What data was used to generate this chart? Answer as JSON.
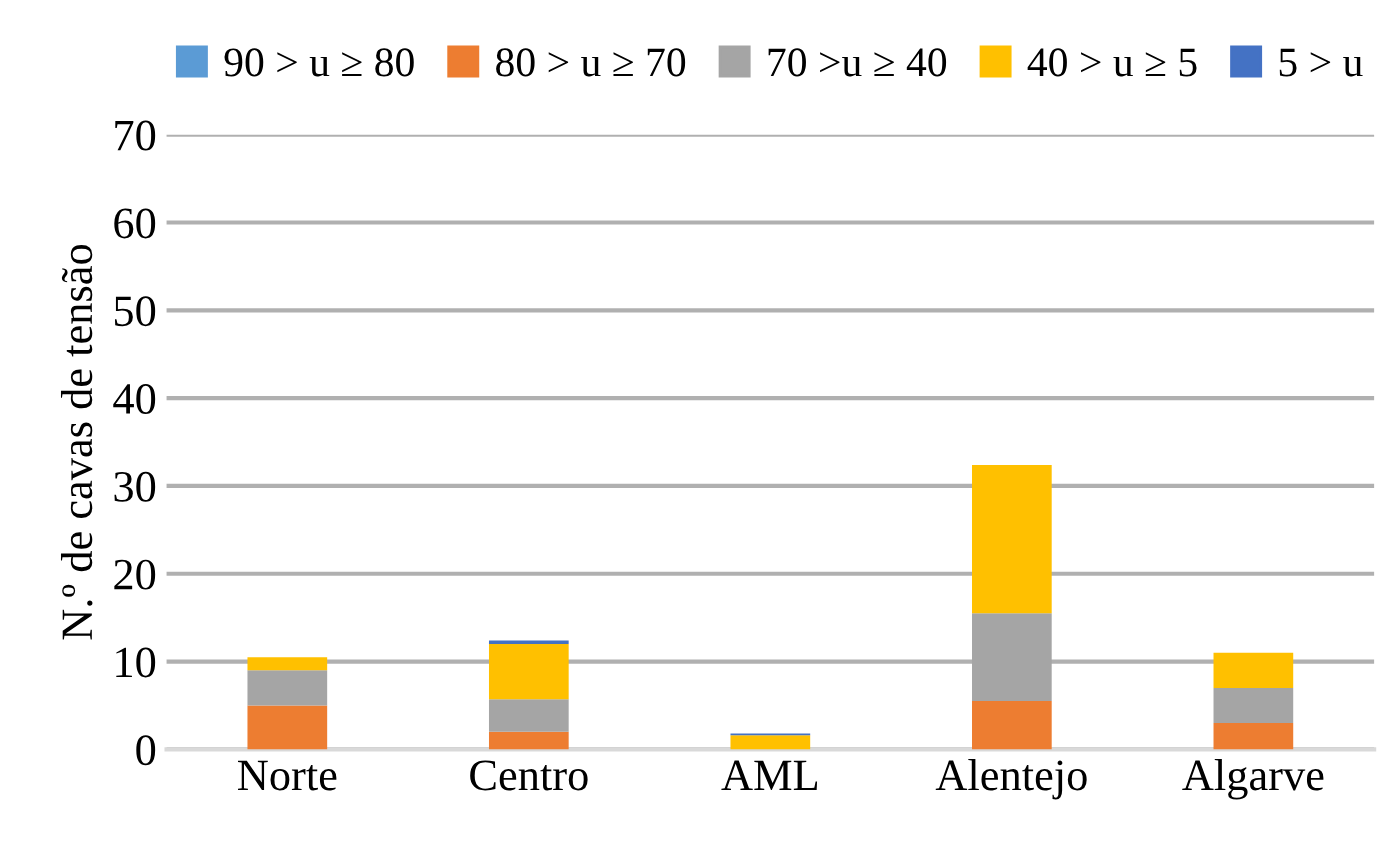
{
  "chart_data": {
    "type": "bar",
    "stacked": true,
    "ylabel": "N.º de cavas de tensão",
    "categories": [
      "Norte",
      "Centro",
      "AML",
      "Alentejo",
      "Algarve"
    ],
    "series": [
      {
        "name": "90 > u ≥ 80",
        "color": "#5b9bd5",
        "values": [
          0,
          0,
          0,
          0,
          0
        ]
      },
      {
        "name": "80 > u ≥ 70",
        "color": "#ed7d31",
        "values": [
          5,
          2,
          0,
          5.5,
          3
        ]
      },
      {
        "name": "70 >u ≥ 40",
        "color": "#a5a5a5",
        "values": [
          4,
          3.7,
          0,
          10,
          4
        ]
      },
      {
        "name": "40 > u ≥ 5",
        "color": "#ffc000",
        "values": [
          1.5,
          6.3,
          1.6,
          16.9,
          4
        ]
      },
      {
        "name": "5 > u",
        "color": "#4472c4",
        "values": [
          0,
          0.4,
          0.2,
          0,
          0
        ]
      }
    ],
    "ylim": [
      0,
      70
    ],
    "yticks": [
      0,
      10,
      20,
      30,
      40,
      50,
      60,
      70
    ],
    "grid": "y",
    "legend": "top"
  }
}
